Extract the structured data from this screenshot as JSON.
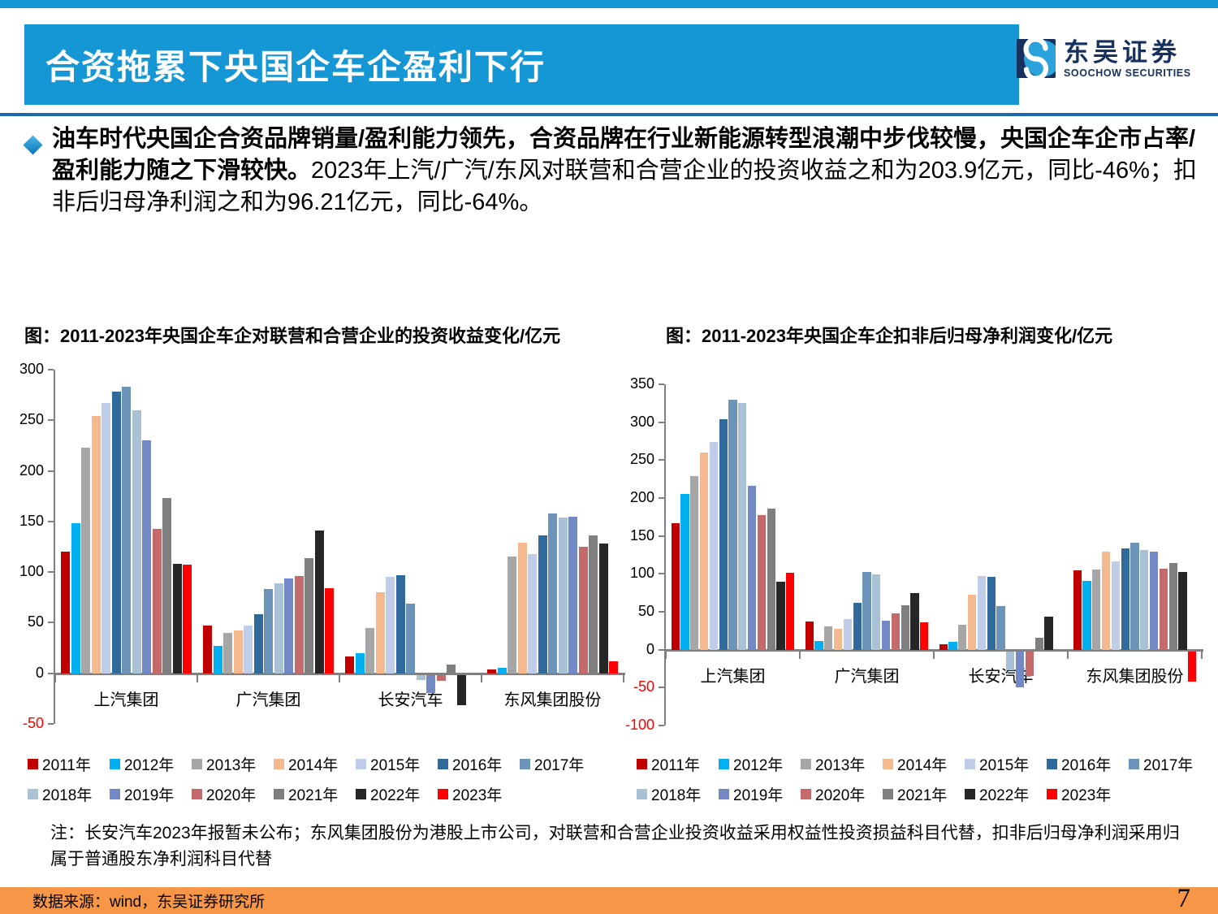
{
  "header": {
    "title": "合资拖累下央国企车企盈利下行",
    "logo_cn": "东吴证券",
    "logo_en": "SOOCHOW SECURITIES"
  },
  "bullet": {
    "bold": "油车时代央国企合资品牌销量/盈利能力领先，合资品牌在行业新能源转型浪潮中步伐较慢，央国企车企市占率/盈利能力随之下滑较快。",
    "normal": "2023年上汽/广汽/东风对联营和合营企业的投资收益之和为203.9亿元，同比-46%；扣非后归母净利润之和为96.21亿元，同比-64%。"
  },
  "charts": {
    "left_title": "图：2011-2023年央国企车企对联营和合营企业的投资收益变化/亿元",
    "right_title": "图：2011-2023年央国企车企扣非后归母净利润变化/亿元"
  },
  "note": "注：长安汽车2023年报暂未公布；东风集团股份为港股上市公司，对联营和合营企业投资收益采用权益性投资损益科目代替，扣非后归母净利润采用归属于普通股东净利润科目代替",
  "footer": {
    "source": "数据来源：wind，东吴证券研究所",
    "page_number": "7"
  },
  "colors": {
    "header_blue": "#1697D5",
    "rule_blue": "#1A6AAE",
    "footer_orange": "#F79646",
    "logo_navy": "#16315E",
    "logo_blue": "#2AA3DC",
    "axis_gray": "#808080",
    "negative_tick": "#FF0000",
    "series": [
      "#C00000",
      "#00B0F0",
      "#A6A6A6",
      "#F4B98E",
      "#BFCDE9",
      "#30699B",
      "#6B94B8",
      "#A9C1D5",
      "#7289C6",
      "#C46A6A",
      "#7F7F7F",
      "#262626",
      "#FF0000"
    ]
  },
  "chart_data": [
    {
      "type": "bar",
      "title": "图：2011-2023年央国企车企对联营和合营企业的投资收益变化/亿元",
      "ylabel": "亿元",
      "categories": [
        "上汽集团",
        "广汽集团",
        "长安汽车",
        "东风集团股份"
      ],
      "series": [
        {
          "name": "2011年",
          "values": [
            120,
            47,
            17,
            4
          ]
        },
        {
          "name": "2012年",
          "values": [
            148,
            27,
            20,
            5
          ]
        },
        {
          "name": "2013年",
          "values": [
            223,
            40,
            45,
            115
          ]
        },
        {
          "name": "2014年",
          "values": [
            254,
            42,
            80,
            129
          ]
        },
        {
          "name": "2015年",
          "values": [
            267,
            47,
            95,
            118
          ]
        },
        {
          "name": "2016年",
          "values": [
            278,
            58,
            97,
            136
          ]
        },
        {
          "name": "2017年",
          "values": [
            283,
            83,
            69,
            158
          ]
        },
        {
          "name": "2018年",
          "values": [
            260,
            89,
            -5,
            154
          ]
        },
        {
          "name": "2019年",
          "values": [
            230,
            94,
            -18,
            155
          ]
        },
        {
          "name": "2020年",
          "values": [
            143,
            96,
            -6,
            125
          ]
        },
        {
          "name": "2021年",
          "values": [
            173,
            114,
            9,
            136
          ]
        },
        {
          "name": "2022年",
          "values": [
            108,
            141,
            -30,
            128
          ]
        },
        {
          "name": "2023年",
          "values": [
            107,
            84,
            null,
            12
          ]
        }
      ],
      "ylim": [
        -50,
        300
      ],
      "yticks": [
        300,
        250,
        200,
        150,
        100,
        50,
        0,
        -50
      ],
      "grid": false,
      "legend_position": "bottom"
    },
    {
      "type": "bar",
      "title": "图：2011-2023年央国企车企扣非后归母净利润变化/亿元",
      "ylabel": "亿元",
      "categories": [
        "上汽集团",
        "广汽集团",
        "长安汽车",
        "东风集团股份"
      ],
      "series": [
        {
          "name": "2011年",
          "values": [
            167,
            37,
            7,
            105
          ]
        },
        {
          "name": "2012年",
          "values": [
            205,
            11,
            10,
            91
          ]
        },
        {
          "name": "2013年",
          "values": [
            229,
            31,
            33,
            106
          ]
        },
        {
          "name": "2014年",
          "values": [
            260,
            28,
            73,
            129
          ]
        },
        {
          "name": "2015年",
          "values": [
            274,
            40,
            97,
            116
          ]
        },
        {
          "name": "2016年",
          "values": [
            304,
            62,
            96,
            134
          ]
        },
        {
          "name": "2017年",
          "values": [
            330,
            103,
            58,
            141
          ]
        },
        {
          "name": "2018年",
          "values": [
            325,
            99,
            -25,
            131
          ]
        },
        {
          "name": "2019年",
          "values": [
            216,
            38,
            -48,
            129
          ]
        },
        {
          "name": "2020年",
          "values": [
            178,
            48,
            -33,
            107
          ]
        },
        {
          "name": "2021年",
          "values": [
            186,
            59,
            16,
            114
          ]
        },
        {
          "name": "2022年",
          "values": [
            90,
            75,
            44,
            103
          ]
        },
        {
          "name": "2023年",
          "values": [
            101,
            36,
            null,
            -40
          ]
        }
      ],
      "ylim": [
        -100,
        350
      ],
      "yticks": [
        350,
        300,
        250,
        200,
        150,
        100,
        50,
        0,
        -50,
        -100
      ],
      "grid": false,
      "legend_position": "bottom"
    }
  ]
}
